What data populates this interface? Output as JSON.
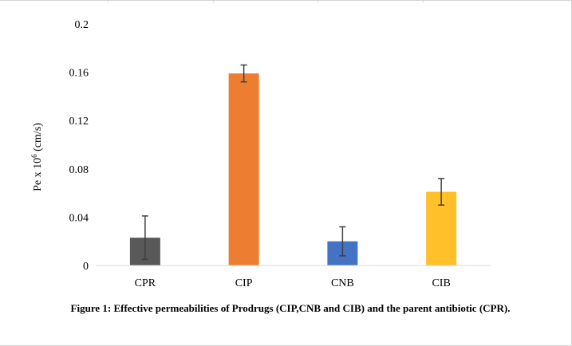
{
  "figure": {
    "caption": "Figure 1: Effective permeabilities of Prodrugs (CIP,CNB and CIB) and the parent antibiotic (CPR)."
  },
  "chart_data": {
    "type": "bar",
    "categories": [
      "CPR",
      "CIP",
      "CNB",
      "CIB"
    ],
    "values": [
      0.023,
      0.159,
      0.02,
      0.061
    ],
    "errors": [
      0.018,
      0.007,
      0.012,
      0.011
    ],
    "colors": [
      "#595959",
      "#ED7D31",
      "#4472C4",
      "#FFC029"
    ],
    "title": "",
    "xlabel": "",
    "ylabel": "Pe x 10^6 (cm/s)",
    "ylabel_parts": {
      "base": "Pe x 10",
      "sup": "6",
      "unit": " (cm/s)"
    },
    "ylim": [
      0,
      0.2
    ],
    "yticks": [
      0,
      0.04,
      0.08,
      0.12,
      0.16,
      0.2
    ],
    "ytick_labels": [
      "0",
      "0.04",
      "0.08",
      "0.12",
      "0.16",
      "0.2"
    ],
    "grid": false,
    "legend": "none"
  }
}
